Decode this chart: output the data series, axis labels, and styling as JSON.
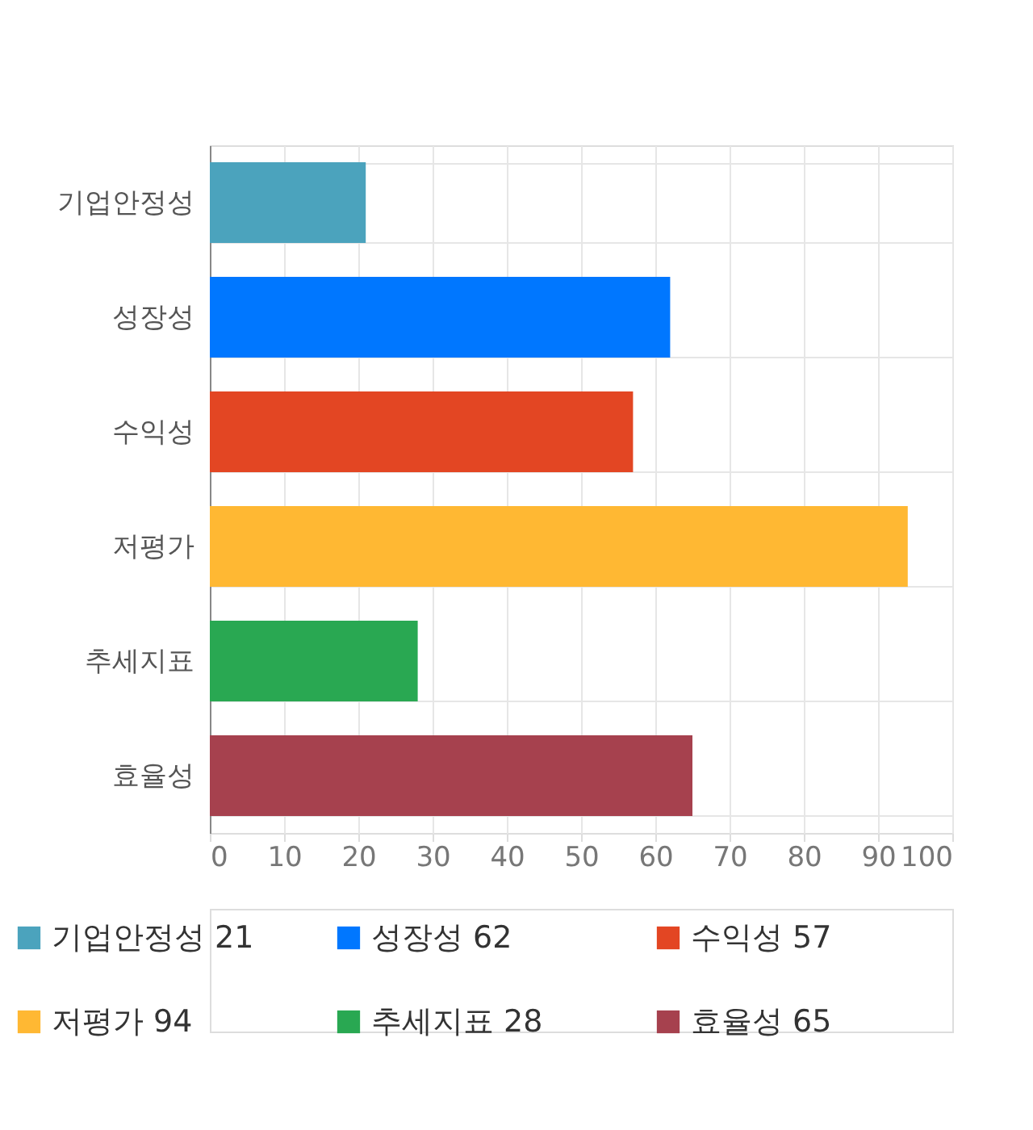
{
  "chart_data": {
    "type": "bar",
    "orientation": "horizontal",
    "stacked": true,
    "categories": [
      "기업안정성",
      "성장성",
      "수익성",
      "저평가",
      "추세지표",
      "효율성"
    ],
    "series": [
      {
        "name": "기업안정성 21",
        "color": "#4ba3bd",
        "values": [
          21,
          null,
          null,
          null,
          null,
          null
        ]
      },
      {
        "name": "성장성 62",
        "color": "#0077ff",
        "values": [
          null,
          62,
          null,
          null,
          null,
          null
        ]
      },
      {
        "name": "수익성 57",
        "color": "#e34623",
        "values": [
          null,
          null,
          57,
          null,
          null,
          null
        ]
      },
      {
        "name": "저평가 94",
        "color": "#ffb833",
        "values": [
          null,
          null,
          null,
          94,
          null,
          null
        ]
      },
      {
        "name": "추세지표 28",
        "color": "#29a852",
        "values": [
          null,
          null,
          null,
          null,
          28,
          null
        ]
      },
      {
        "name": "효율성 65",
        "color": "#a6414e",
        "values": [
          null,
          null,
          null,
          null,
          null,
          65
        ]
      }
    ],
    "xlim": [
      0,
      100
    ],
    "xticks": [
      0,
      10,
      20,
      30,
      40,
      50,
      60,
      70,
      80,
      90,
      100
    ],
    "grid": true,
    "legend": "bottom"
  }
}
